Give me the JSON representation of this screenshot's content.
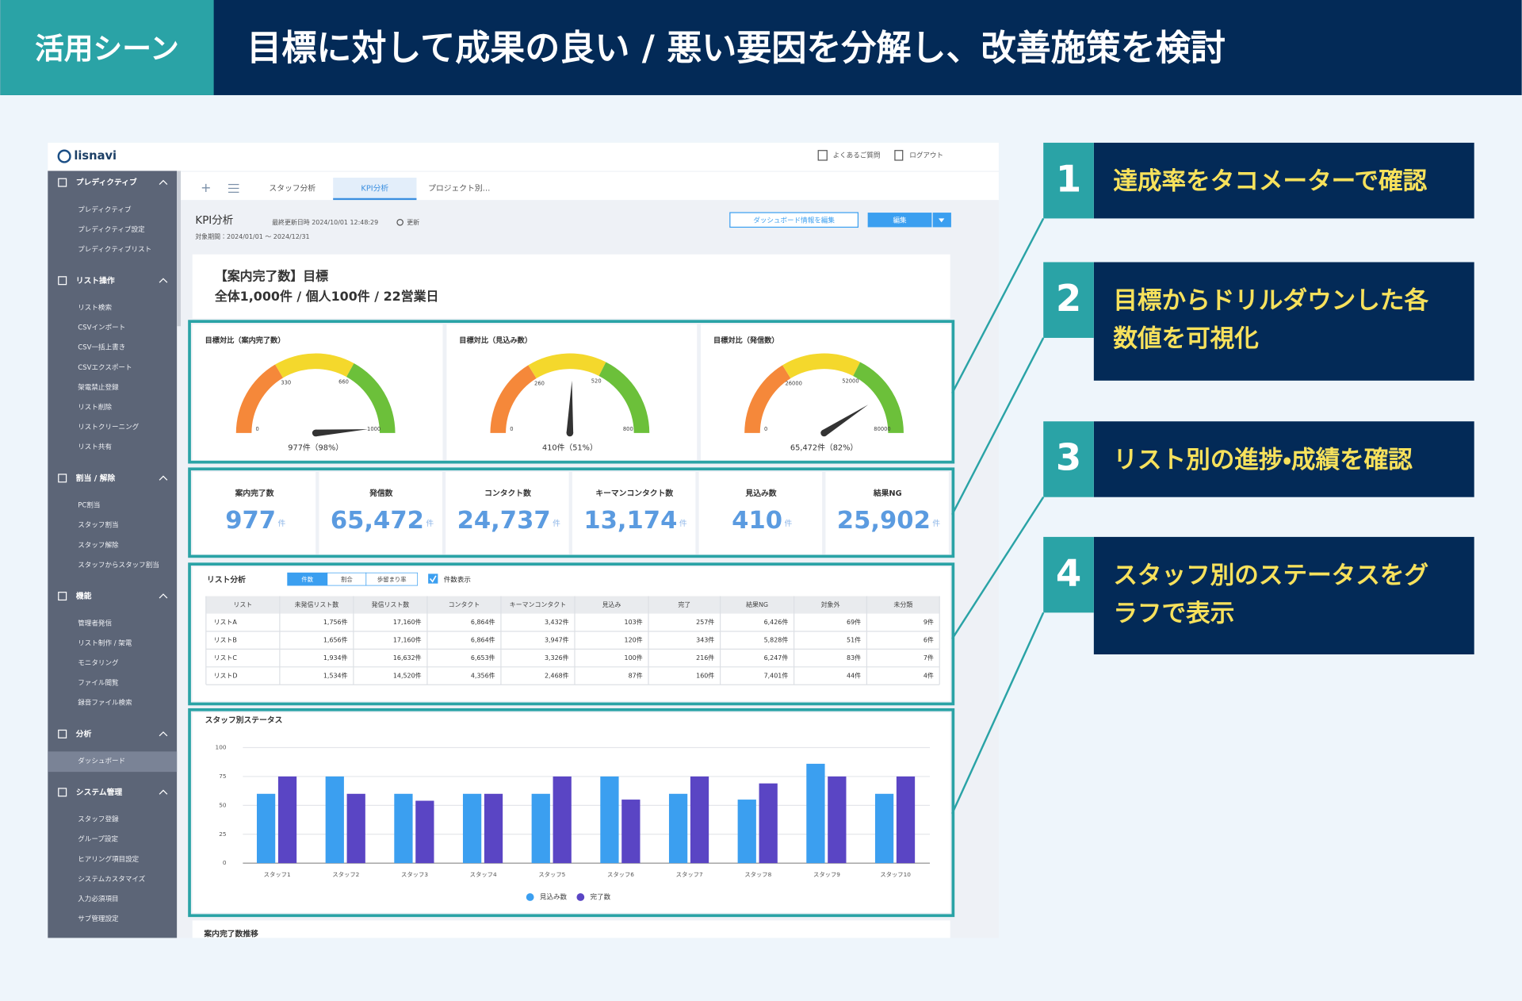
{
  "header": {
    "tag": "活用シーン",
    "title": "目標に対して成果の良い / 悪い要因を分解し、改善施策を検討"
  },
  "callouts": [
    {
      "number": "1",
      "lines": [
        "達成率をタコメーターで確認"
      ]
    },
    {
      "number": "2",
      "lines": [
        "目標からドリルダウンした各",
        "数値を可視化"
      ]
    },
    {
      "number": "3",
      "lines": [
        "リスト別の進捗・成績を確認"
      ]
    },
    {
      "number": "4",
      "lines": [
        "スタッフ別のステータスをグ",
        "ラフで表示"
      ]
    }
  ],
  "app": {
    "logo": "lisnavi",
    "top_links": [
      "よくあるご質問",
      "ログアウト"
    ],
    "sidebar": [
      {
        "title": "プレディクティブ",
        "items": [
          "プレディクティブ",
          "プレディクティブ設定",
          "プレディクティブリスト"
        ]
      },
      {
        "title": "リスト操作",
        "items": [
          "リスト検索",
          "CSVインポート",
          "CSV一括上書き",
          "CSVエクスポート",
          "架電禁止登録",
          "リスト削除",
          "リストクリーニング",
          "リスト共有"
        ]
      },
      {
        "title": "割当 / 解除",
        "items": [
          "PC割当",
          "スタッフ割当",
          "スタッフ解除",
          "スタッフからスタッフ割当"
        ]
      },
      {
        "title": "機能",
        "items": [
          "管理者発信",
          "リスト制作 / 架電",
          "モニタリング",
          "ファイル閲覧",
          "録音ファイル検索"
        ]
      },
      {
        "title": "分析",
        "items": [
          "ダッシュボード"
        ]
      },
      {
        "title": "システム管理",
        "items": [
          "スタッフ登録",
          "グループ設定",
          "ヒアリング項目設定",
          "システムカスタマイズ",
          "入力必須項目",
          "サブ管理設定"
        ]
      }
    ],
    "tabs": [
      "スタッフ分析",
      "KPI分析",
      "プロジェクト別…"
    ],
    "page_title": "KPI分析",
    "updated": "最終更新日時 2024/10/01 12:48:29",
    "refresh": "更新",
    "period": "対象期間：2024/01/01 ～ 2024/12/31",
    "buttons": [
      "ダッシュボード情報を編集",
      "編集"
    ],
    "goal": {
      "title": "【案内完了数】目標",
      "detail": "全体1,000件 / 個人100件 / 22営業日"
    },
    "gauges": [
      {
        "title": "目標対比（案内完了数）",
        "min": 0,
        "max": 1000,
        "ticks": [
          0,
          330,
          660,
          1000
        ],
        "value": 977,
        "value_label": "977件（98%）"
      },
      {
        "title": "目標対比（見込み数）",
        "min": 0,
        "max": 800,
        "ticks": [
          0,
          260,
          520,
          800
        ],
        "value": 410,
        "value_label": "410件（51%）"
      },
      {
        "title": "目標対比（発信数）",
        "min": 0,
        "max": 80000,
        "ticks": [
          0,
          26000,
          52000,
          80000
        ],
        "value": 65472,
        "value_label": "65,472件（82%）"
      }
    ],
    "kpis": [
      {
        "label": "案内完了数",
        "value": "977",
        "unit": "件"
      },
      {
        "label": "発信数",
        "value": "65,472",
        "unit": "件"
      },
      {
        "label": "コンタクト数",
        "value": "24,737",
        "unit": "件"
      },
      {
        "label": "キーマンコンタクト数",
        "value": "13,174",
        "unit": "件"
      },
      {
        "label": "見込み数",
        "value": "410",
        "unit": "件"
      },
      {
        "label": "結果NG",
        "value": "25,902",
        "unit": "件"
      }
    ],
    "table": {
      "title": "リスト分析",
      "toggles": [
        "件数",
        "割合",
        "歩留まり率"
      ],
      "checkbox": "件数表示",
      "header": [
        "リスト",
        "未発信リスト数",
        "発信リスト数",
        "コンタクト",
        "キーマンコンタクト",
        "見込み",
        "完了",
        "結果NG",
        "対象外",
        "未分類"
      ],
      "rows": [
        [
          "リストA",
          "1,756件",
          "17,160件",
          "6,864件",
          "3,432件",
          "103件",
          "257件",
          "6,426件",
          "69件",
          "9件"
        ],
        [
          "リストB",
          "1,656件",
          "17,160件",
          "6,864件",
          "3,947件",
          "120件",
          "343件",
          "5,828件",
          "51件",
          "6件"
        ],
        [
          "リストC",
          "1,934件",
          "16,632件",
          "6,653件",
          "3,326件",
          "100件",
          "216件",
          "6,247件",
          "83件",
          "7件"
        ],
        [
          "リストD",
          "1,534件",
          "14,520件",
          "4,356件",
          "2,468件",
          "87件",
          "160件",
          "7,401件",
          "44件",
          "4件"
        ]
      ]
    },
    "next_section": "案内完了数推移"
  },
  "chart_data": {
    "type": "bar",
    "title": "スタッフ別ステータス",
    "categories": [
      "スタッフ1",
      "スタッフ2",
      "スタッフ3",
      "スタッフ4",
      "スタッフ5",
      "スタッフ6",
      "スタッフ7",
      "スタッフ8",
      "スタッフ9",
      "スタッフ10"
    ],
    "series": [
      {
        "name": "見込み数",
        "color": "#3b9ff0",
        "values": [
          60,
          75,
          60,
          60,
          60,
          75,
          60,
          55,
          86,
          60
        ]
      },
      {
        "name": "完了数",
        "color": "#5a45c4",
        "values": [
          75,
          60,
          54,
          60,
          75,
          55,
          75,
          69,
          75,
          75
        ]
      }
    ],
    "ylim": [
      0,
      100
    ],
    "yticks": [
      0,
      25,
      50,
      75,
      100
    ],
    "grid": true,
    "legend": "bottom"
  }
}
